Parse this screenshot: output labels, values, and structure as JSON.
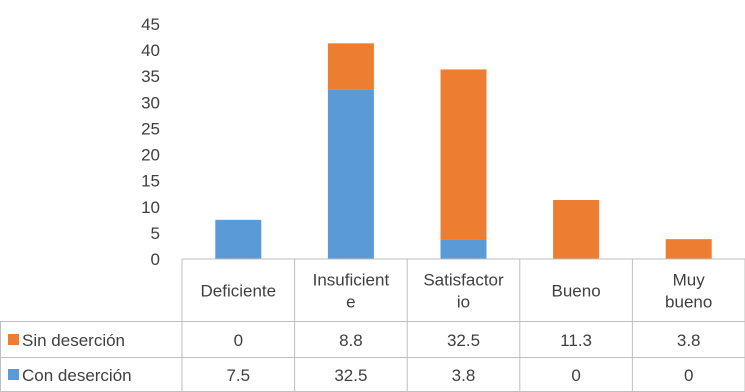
{
  "chart_data": {
    "type": "bar",
    "stacked": true,
    "categories": [
      [
        "Deficiente"
      ],
      [
        "Insuficient",
        "e"
      ],
      [
        "Satisfactor",
        "io"
      ],
      [
        "Bueno"
      ],
      [
        "Muy",
        "bueno"
      ]
    ],
    "series": [
      {
        "name": "Con deserción",
        "color": "#5B9BD5",
        "values": [
          7.5,
          32.5,
          3.8,
          0,
          0
        ],
        "labels": [
          "7.5",
          "32.5",
          "3.8",
          "0",
          "0"
        ]
      },
      {
        "name": "Sin deserción",
        "color": "#ED7D31",
        "values": [
          0,
          8.8,
          32.5,
          11.3,
          3.8
        ],
        "labels": [
          "0",
          "8.8",
          "32.5",
          "11.3",
          "3.8"
        ]
      }
    ],
    "yaxis": {
      "min": 0,
      "max": 45,
      "step": 5,
      "tick_labels": [
        "0",
        "5",
        "10",
        "15",
        "20",
        "25",
        "30",
        "35",
        "40",
        "45"
      ]
    },
    "table_row_order": [
      "Sin deserción",
      "Con deserción"
    ],
    "grid": false,
    "legend": "data-table"
  }
}
